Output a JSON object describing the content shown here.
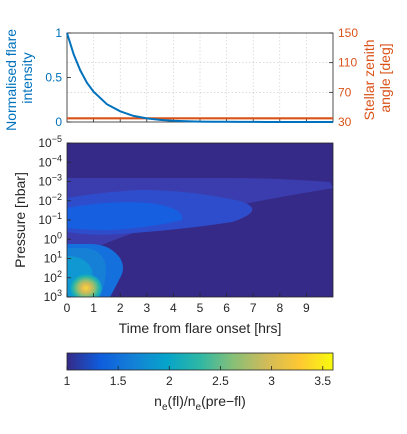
{
  "chart_data": [
    {
      "type": "line",
      "ylabel": "Normalised flare intensity",
      "ylabel_right": "Stellar zenith angle [deg]",
      "xlim": [
        0,
        10
      ],
      "ylim": [
        0,
        1
      ],
      "ylim_right": [
        30,
        150
      ],
      "yticks": [
        0,
        0.5,
        1
      ],
      "yticks_right": [
        30,
        70,
        110,
        150
      ],
      "grid": true,
      "colors": {
        "left": "#0072BD",
        "right": "#D95319"
      },
      "series": [
        {
          "axis": "left",
          "x": [
            0,
            0.25,
            0.5,
            0.75,
            1,
            1.5,
            2,
            2.5,
            3,
            3.5,
            4,
            4.5,
            5,
            5.5,
            6,
            6.5,
            7,
            7.5,
            8,
            8.5,
            9,
            9.5,
            10
          ],
          "values": [
            1,
            0.76,
            0.58,
            0.44,
            0.34,
            0.2,
            0.12,
            0.068,
            0.04,
            0.024,
            0.014,
            0.008,
            0.005,
            0.003,
            0.002,
            0.001,
            0.0007,
            0.0004,
            0.0003,
            0.0002,
            0.0001,
            0.0001,
            0
          ]
        },
        {
          "axis": "right",
          "x": [
            0,
            10
          ],
          "values": [
            35,
            35
          ]
        }
      ]
    },
    {
      "type": "heatmap",
      "xlabel": "Time from flare onset [hrs]",
      "ylabel": "Pressure [nbar]",
      "xlim": [
        0,
        10
      ],
      "xticks": [
        "0",
        "1",
        "2",
        "3",
        "4",
        "5",
        "6",
        "7",
        "8",
        "9"
      ],
      "y_scale": "log",
      "yticks": [
        "10^-5",
        "10^-4",
        "10^-3",
        "10^-2",
        "10^-1",
        "10^0",
        "10^1",
        "10^2",
        "10^3"
      ],
      "yticks_base": "10",
      "yticks_exp": [
        "−5",
        "−4",
        "−3",
        "−2",
        "−1",
        "0",
        "1",
        "2",
        "3"
      ],
      "colorbar": {
        "label": "n_e(fl)/n_e(pre−fl)",
        "label_parts": [
          "n",
          "e",
          "(fl)/n",
          "e",
          "(pre−fl)"
        ],
        "range": [
          1,
          3.6
        ],
        "ticks": [
          "1",
          "1.5",
          "2",
          "2.5",
          "3",
          "3.5"
        ],
        "colormap": "parula"
      }
    }
  ]
}
